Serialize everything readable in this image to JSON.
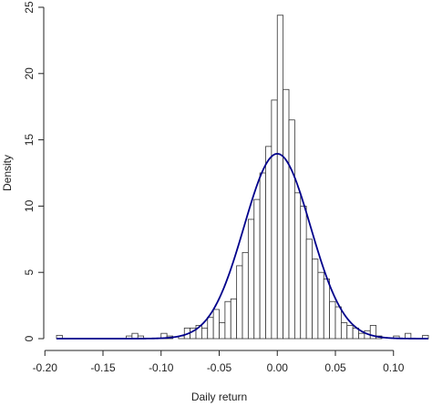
{
  "chart_data": {
    "type": "bar",
    "title": "",
    "xlabel": "Daily return",
    "ylabel": "Density",
    "xlim": [
      -0.19,
      0.13
    ],
    "ylim": [
      0,
      25
    ],
    "x_ticks": [
      -0.2,
      -0.15,
      -0.1,
      -0.05,
      0.0,
      0.05,
      0.1
    ],
    "x_tick_labels": [
      "-0.20",
      "-0.15",
      "-0.10",
      "-0.05",
      "0.00",
      "0.05",
      "0.10"
    ],
    "y_ticks": [
      0,
      5,
      10,
      15,
      20,
      25
    ],
    "y_tick_labels": [
      "0",
      "5",
      "10",
      "15",
      "20",
      "25"
    ],
    "grid": false,
    "series": [
      {
        "kind": "histogram",
        "bin_width": 0.005,
        "bars": [
          {
            "x0": -0.19,
            "density": 0.25
          },
          {
            "x0": -0.13,
            "density": 0.2
          },
          {
            "x0": -0.125,
            "density": 0.4
          },
          {
            "x0": -0.12,
            "density": 0.2
          },
          {
            "x0": -0.1,
            "density": 0.4
          },
          {
            "x0": -0.095,
            "density": 0.2
          },
          {
            "x0": -0.085,
            "density": 0.2
          },
          {
            "x0": -0.08,
            "density": 0.8
          },
          {
            "x0": -0.075,
            "density": 0.8
          },
          {
            "x0": -0.07,
            "density": 1.0
          },
          {
            "x0": -0.065,
            "density": 0.8
          },
          {
            "x0": -0.06,
            "density": 1.6
          },
          {
            "x0": -0.055,
            "density": 2.2
          },
          {
            "x0": -0.05,
            "density": 1.2
          },
          {
            "x0": -0.045,
            "density": 2.8
          },
          {
            "x0": -0.04,
            "density": 3.0
          },
          {
            "x0": -0.035,
            "density": 5.5
          },
          {
            "x0": -0.03,
            "density": 6.5
          },
          {
            "x0": -0.025,
            "density": 9.0
          },
          {
            "x0": -0.02,
            "density": 10.5
          },
          {
            "x0": -0.015,
            "density": 12.5
          },
          {
            "x0": -0.01,
            "density": 14.5
          },
          {
            "x0": -0.005,
            "density": 18.0
          },
          {
            "x0": 0.0,
            "density": 24.4
          },
          {
            "x0": 0.005,
            "density": 18.8
          },
          {
            "x0": 0.01,
            "density": 16.5
          },
          {
            "x0": 0.015,
            "density": 11.0
          },
          {
            "x0": 0.02,
            "density": 10.0
          },
          {
            "x0": 0.025,
            "density": 7.5
          },
          {
            "x0": 0.03,
            "density": 6.0
          },
          {
            "x0": 0.035,
            "density": 5.0
          },
          {
            "x0": 0.04,
            "density": 4.5
          },
          {
            "x0": 0.045,
            "density": 2.8
          },
          {
            "x0": 0.05,
            "density": 2.4
          },
          {
            "x0": 0.055,
            "density": 1.2
          },
          {
            "x0": 0.06,
            "density": 1.0
          },
          {
            "x0": 0.065,
            "density": 0.8
          },
          {
            "x0": 0.07,
            "density": 0.4
          },
          {
            "x0": 0.075,
            "density": 0.6
          },
          {
            "x0": 0.08,
            "density": 1.0
          },
          {
            "x0": 0.085,
            "density": 0.2
          },
          {
            "x0": 0.1,
            "density": 0.2
          },
          {
            "x0": 0.11,
            "density": 0.4
          },
          {
            "x0": 0.125,
            "density": 0.25
          }
        ]
      },
      {
        "kind": "density-curve",
        "color": "#00008b",
        "distribution": "normal",
        "mean": 0.0,
        "sd": 0.0286
      }
    ]
  }
}
